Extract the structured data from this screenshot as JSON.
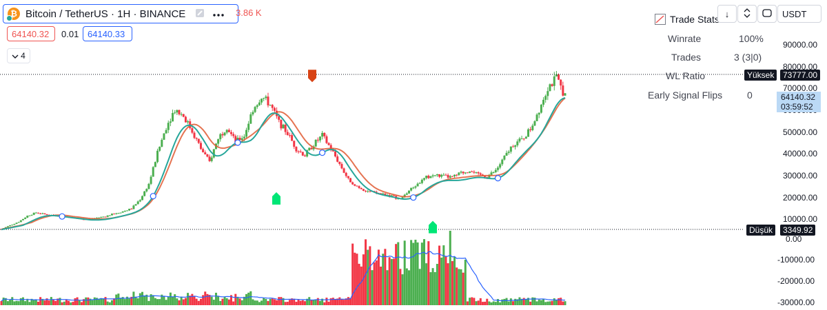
{
  "header": {
    "symbol_title": "Bitcoin / TetherUS · 1H · BINANCE",
    "symbol_badge": "₿",
    "volume_partial": "3.86 K",
    "bid_price": "64140.32",
    "spread": "0.01",
    "ask_price": "64140.33",
    "indicator_count": "4"
  },
  "toolbar": {
    "arrow_down_label": "↓",
    "collapse_label": "⌃⌄",
    "fullscreen_label": "▭",
    "currency": "USDT"
  },
  "trade_stats": {
    "title": "Trade Stats",
    "rows": [
      {
        "label": "Winrate",
        "value": "100%"
      },
      {
        "label": "Trades",
        "value": "3 (3|0)"
      },
      {
        "label": "WL Ratio",
        "value": ""
      },
      {
        "label": "Early Signal Flips",
        "value": "0"
      }
    ]
  },
  "price_axis": {
    "ticks": [
      "90000.00",
      "80000.00",
      "70000.00",
      "60000.00",
      "50000.00",
      "40000.00",
      "30000.00",
      "20000.00",
      "10000.00"
    ],
    "high_label": "Yüksek",
    "high_value": "73777.00",
    "low_label": "Düşük",
    "low_value": "3349.92",
    "last_price": "64140.32",
    "countdown": "03:59:52"
  },
  "volume_axis": {
    "ticks": [
      "0.00",
      "-10000.00",
      "-20000.00",
      "-30000.00"
    ]
  },
  "colors": {
    "up": "#26a69a",
    "down": "#ef5350",
    "candle_up": "#4caf50",
    "candle_down": "#f23645",
    "fast_ma": "#26a69a",
    "slow_ma": "#e05a33",
    "buy_signal": "#00e676",
    "sell_signal": "#d84315",
    "volume_ma": "#2962ff",
    "accent": "#2962ff"
  },
  "chart_data": {
    "type": "line",
    "series": [
      {
        "values": [
          3500,
          5200,
          6800,
          9500,
          11000,
          10200,
          9800,
          9400,
          8700,
          8200,
          7900,
          8600,
          9300,
          10500,
          11500,
          12800,
          17000,
          24000,
          38000,
          50000,
          58000,
          55000,
          48000,
          40000,
          34000,
          45000,
          50000,
          43000,
          46000,
          58000,
          64000,
          60000,
          52000,
          47000,
          40000,
          37000,
          42000,
          46000,
          40000,
          33000,
          26000,
          23000,
          21000,
          20000,
          19500,
          18500,
          17000,
          21000,
          24000,
          27000,
          28000,
          27500,
          27000,
          29000,
          30000,
          28000,
          27500,
          30000,
          36000,
          42000,
          44000,
          49000,
          58000,
          68000,
          72000,
          64140
        ]
      }
    ],
    "ylim": [
      0,
      90000
    ],
    "signals": [
      {
        "type": "buy",
        "price": 29000
      },
      {
        "type": "sell",
        "price": 69000
      },
      {
        "type": "buy",
        "price": 16000
      }
    ]
  }
}
